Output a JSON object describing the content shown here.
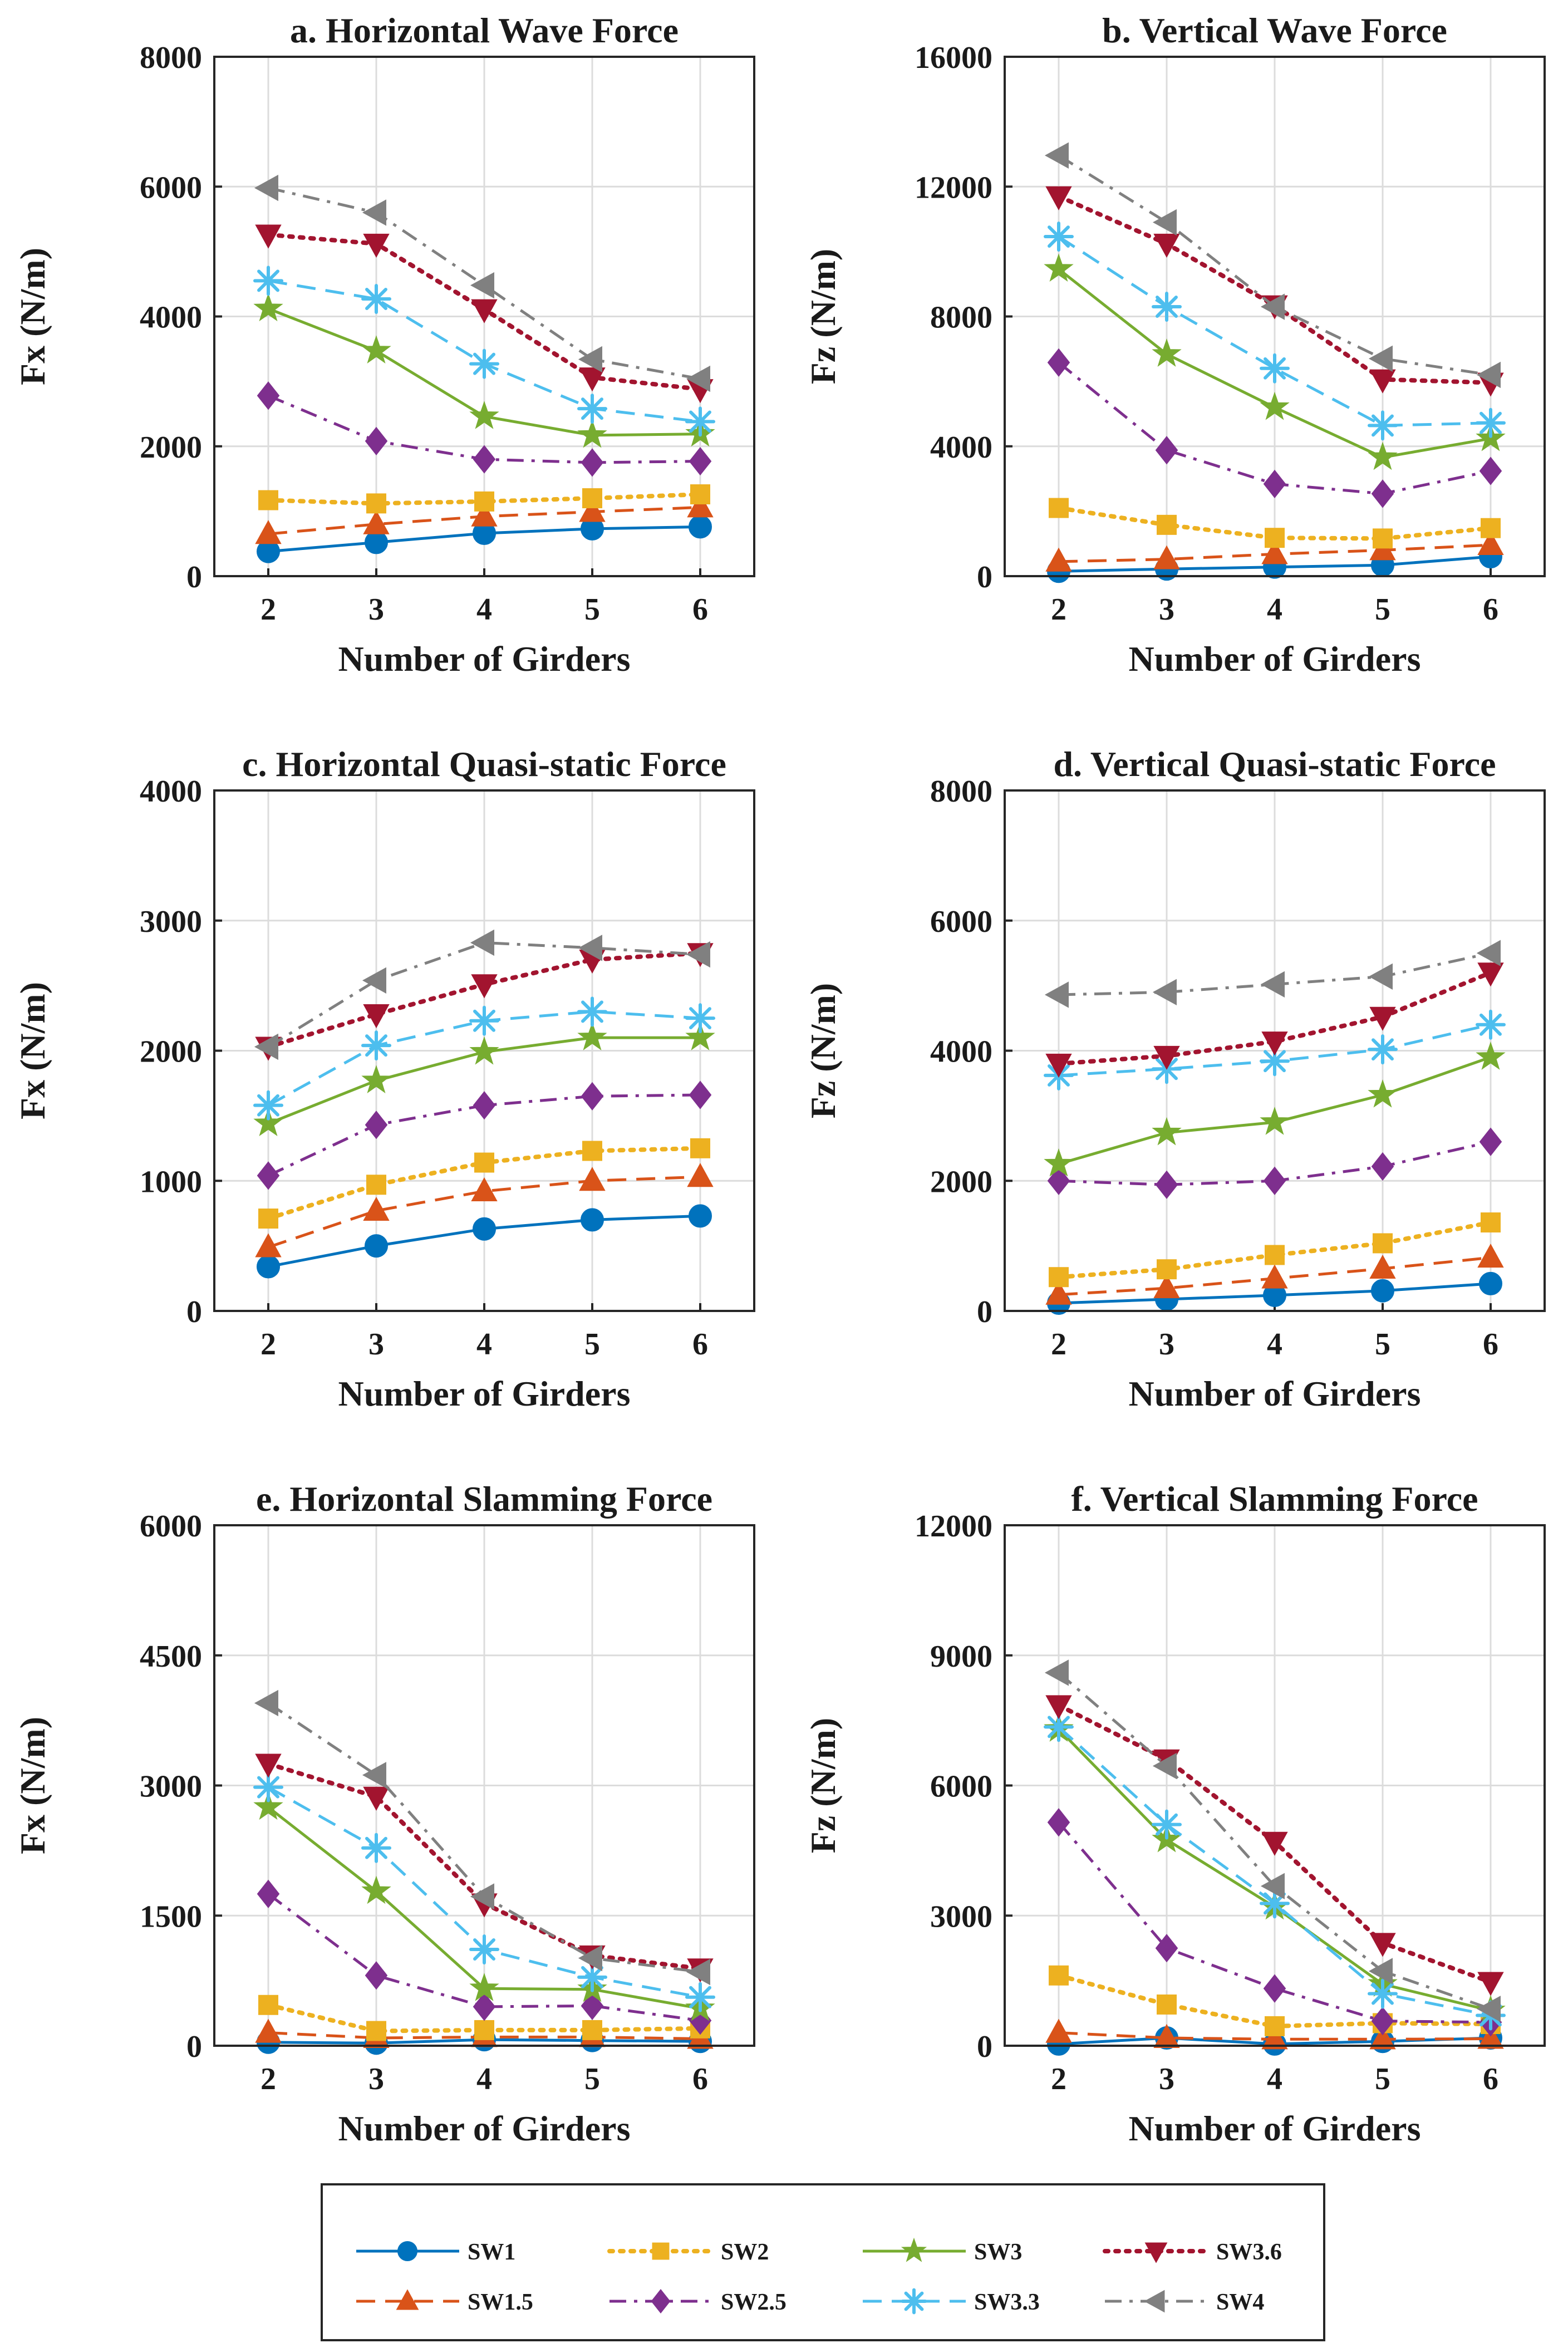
{
  "chart_data": [
    {
      "type": "line",
      "title": "a. Horizontal Wave Force",
      "xlabel": "Number of Girders",
      "ylabel": "Fx (N/m)",
      "x": [
        2,
        3,
        4,
        5,
        6
      ],
      "xlim": [
        1.5,
        6.5
      ],
      "ylim": [
        0,
        8000
      ],
      "yticks": [
        0,
        2000,
        4000,
        6000,
        8000
      ],
      "xticks": [
        2,
        3,
        4,
        5,
        6
      ],
      "grid": true,
      "series": [
        {
          "name": "SW1",
          "values": [
            380,
            520,
            660,
            730,
            760
          ]
        },
        {
          "name": "SW1.5",
          "values": [
            650,
            800,
            920,
            990,
            1060
          ]
        },
        {
          "name": "SW2",
          "values": [
            1170,
            1120,
            1150,
            1200,
            1260
          ]
        },
        {
          "name": "SW2.5",
          "values": [
            2780,
            2080,
            1800,
            1750,
            1770
          ]
        },
        {
          "name": "SW3",
          "values": [
            4120,
            3470,
            2460,
            2170,
            2190
          ]
        },
        {
          "name": "SW3.3",
          "values": [
            4550,
            4270,
            3270,
            2580,
            2380
          ]
        },
        {
          "name": "SW3.6",
          "values": [
            5260,
            5120,
            4110,
            3060,
            2880
          ]
        },
        {
          "name": "SW4",
          "values": [
            5980,
            5600,
            4480,
            3340,
            3040
          ]
        }
      ]
    },
    {
      "type": "line",
      "title": "b. Vertical Wave Force",
      "xlabel": "Number of Girders",
      "ylabel": "Fz (N/m)",
      "x": [
        2,
        3,
        4,
        5,
        6
      ],
      "xlim": [
        1.5,
        6.5
      ],
      "ylim": [
        0,
        16000
      ],
      "yticks": [
        0,
        4000,
        8000,
        12000,
        16000
      ],
      "xticks": [
        2,
        3,
        4,
        5,
        6
      ],
      "grid": true,
      "series": [
        {
          "name": "SW1",
          "values": [
            150,
            220,
            280,
            340,
            600
          ]
        },
        {
          "name": "SW1.5",
          "values": [
            450,
            520,
            680,
            800,
            960
          ]
        },
        {
          "name": "SW2",
          "values": [
            2100,
            1580,
            1180,
            1160,
            1480
          ]
        },
        {
          "name": "SW2.5",
          "values": [
            6580,
            3880,
            2840,
            2540,
            3240
          ]
        },
        {
          "name": "SW3",
          "values": [
            9460,
            6840,
            5200,
            3660,
            4240
          ]
        },
        {
          "name": "SW3.3",
          "values": [
            10460,
            8300,
            6400,
            4640,
            4720
          ]
        },
        {
          "name": "SW3.6",
          "values": [
            11700,
            10240,
            8340,
            6060,
            5960
          ]
        },
        {
          "name": "SW4",
          "values": [
            12960,
            10900,
            8300,
            6700,
            6200
          ]
        }
      ]
    },
    {
      "type": "line",
      "title": "c. Horizontal Quasi-static Force",
      "xlabel": "Number of Girders",
      "ylabel": "Fx (N/m)",
      "x": [
        2,
        3,
        4,
        5,
        6
      ],
      "xlim": [
        1.5,
        6.5
      ],
      "ylim": [
        0,
        4000
      ],
      "yticks": [
        0,
        1000,
        2000,
        3000,
        4000
      ],
      "xticks": [
        2,
        3,
        4,
        5,
        6
      ],
      "grid": true,
      "series": [
        {
          "name": "SW1",
          "values": [
            340,
            500,
            630,
            700,
            730
          ]
        },
        {
          "name": "SW1.5",
          "values": [
            490,
            770,
            920,
            1000,
            1030
          ]
        },
        {
          "name": "SW2",
          "values": [
            710,
            970,
            1140,
            1230,
            1250
          ]
        },
        {
          "name": "SW2.5",
          "values": [
            1040,
            1430,
            1580,
            1650,
            1660
          ]
        },
        {
          "name": "SW3",
          "values": [
            1440,
            1770,
            1990,
            2100,
            2100
          ]
        },
        {
          "name": "SW3.3",
          "values": [
            1580,
            2040,
            2230,
            2300,
            2250
          ]
        },
        {
          "name": "SW3.6",
          "values": [
            2030,
            2280,
            2510,
            2700,
            2750
          ]
        },
        {
          "name": "SW4",
          "values": [
            2030,
            2540,
            2830,
            2790,
            2740
          ]
        }
      ]
    },
    {
      "type": "line",
      "title": "d. Vertical Quasi-static Force",
      "xlabel": "Number of Girders",
      "ylabel": "Fz (N/m)",
      "x": [
        2,
        3,
        4,
        5,
        6
      ],
      "xlim": [
        1.5,
        6.5
      ],
      "ylim": [
        0,
        8000
      ],
      "yticks": [
        0,
        2000,
        4000,
        6000,
        8000
      ],
      "xticks": [
        2,
        3,
        4,
        5,
        6
      ],
      "grid": true,
      "series": [
        {
          "name": "SW1",
          "values": [
            120,
            180,
            240,
            310,
            420
          ]
        },
        {
          "name": "SW1.5",
          "values": [
            250,
            350,
            500,
            650,
            820
          ]
        },
        {
          "name": "SW2",
          "values": [
            520,
            640,
            860,
            1040,
            1360
          ]
        },
        {
          "name": "SW2.5",
          "values": [
            2000,
            1940,
            2000,
            2220,
            2600
          ]
        },
        {
          "name": "SW3",
          "values": [
            2260,
            2740,
            2900,
            3320,
            3900
          ]
        },
        {
          "name": "SW3.3",
          "values": [
            3620,
            3720,
            3840,
            4020,
            4400
          ]
        },
        {
          "name": "SW3.6",
          "values": [
            3800,
            3920,
            4140,
            4520,
            5200
          ]
        },
        {
          "name": "SW4",
          "values": [
            4860,
            4900,
            5020,
            5140,
            5500
          ]
        }
      ]
    },
    {
      "type": "line",
      "title": "e. Horizontal Slamming Force",
      "xlabel": "Number of Girders",
      "ylabel": "Fx (N/m)",
      "x": [
        2,
        3,
        4,
        5,
        6
      ],
      "xlim": [
        1.5,
        6.5
      ],
      "ylim": [
        0,
        6000
      ],
      "yticks": [
        0,
        1500,
        3000,
        4500,
        6000
      ],
      "xticks": [
        2,
        3,
        4,
        5,
        6
      ],
      "grid": true,
      "series": [
        {
          "name": "SW1",
          "values": [
            40,
            30,
            70,
            60,
            50
          ]
        },
        {
          "name": "SW1.5",
          "values": [
            150,
            90,
            100,
            100,
            80
          ]
        },
        {
          "name": "SW2",
          "values": [
            470,
            170,
            180,
            180,
            200
          ]
        },
        {
          "name": "SW2.5",
          "values": [
            1750,
            810,
            450,
            460,
            290
          ]
        },
        {
          "name": "SW3",
          "values": [
            2750,
            1780,
            660,
            650,
            430
          ]
        },
        {
          "name": "SW3.3",
          "values": [
            2980,
            2280,
            1110,
            790,
            560
          ]
        },
        {
          "name": "SW3.6",
          "values": [
            3250,
            2870,
            1640,
            1040,
            890
          ]
        },
        {
          "name": "SW4",
          "values": [
            3950,
            3120,
            1720,
            1010,
            850
          ]
        }
      ]
    },
    {
      "type": "line",
      "title": "f. Vertical Slamming Force",
      "xlabel": "Number of Girders",
      "ylabel": "Fz (N/m)",
      "x": [
        2,
        3,
        4,
        5,
        6
      ],
      "xlim": [
        1.5,
        6.5
      ],
      "ylim": [
        0,
        12000
      ],
      "yticks": [
        0,
        3000,
        6000,
        9000,
        12000
      ],
      "xticks": [
        2,
        3,
        4,
        5,
        6
      ],
      "grid": true,
      "series": [
        {
          "name": "SW1",
          "values": [
            40,
            180,
            40,
            100,
            180
          ]
        },
        {
          "name": "SW1.5",
          "values": [
            300,
            180,
            150,
            150,
            160
          ]
        },
        {
          "name": "SW2",
          "values": [
            1620,
            950,
            450,
            520,
            500
          ]
        },
        {
          "name": "SW2.5",
          "values": [
            5150,
            2250,
            1320,
            570,
            540
          ]
        },
        {
          "name": "SW3",
          "values": [
            7300,
            4750,
            3200,
            1420,
            810
          ]
        },
        {
          "name": "SW3.3",
          "values": [
            7350,
            5100,
            3280,
            1200,
            700
          ]
        },
        {
          "name": "SW3.6",
          "values": [
            7850,
            6600,
            4700,
            2370,
            1470
          ]
        },
        {
          "name": "SW4",
          "values": [
            8600,
            6450,
            3680,
            1720,
            850
          ]
        }
      ]
    }
  ],
  "legend": {
    "placement": "bottom",
    "entries": [
      {
        "name": "SW1",
        "color": "#0072BD",
        "dash": "solid",
        "marker": "circle"
      },
      {
        "name": "SW1.5",
        "color": "#D95319",
        "dash": "dashed",
        "marker": "triangle-up"
      },
      {
        "name": "SW2",
        "color": "#EDB120",
        "dash": "dotted",
        "marker": "square"
      },
      {
        "name": "SW2.5",
        "color": "#7E2F8E",
        "dash": "dashdot",
        "marker": "diamond"
      },
      {
        "name": "SW3",
        "color": "#77AC30",
        "dash": "solid",
        "marker": "star"
      },
      {
        "name": "SW3.3",
        "color": "#4DBEEE",
        "dash": "dashed",
        "marker": "asterisk"
      },
      {
        "name": "SW3.6",
        "color": "#A2142F",
        "dash": "dotted",
        "marker": "triangle-down"
      },
      {
        "name": "SW4",
        "color": "#808080",
        "dash": "dashdot",
        "marker": "triangle-left"
      }
    ]
  }
}
